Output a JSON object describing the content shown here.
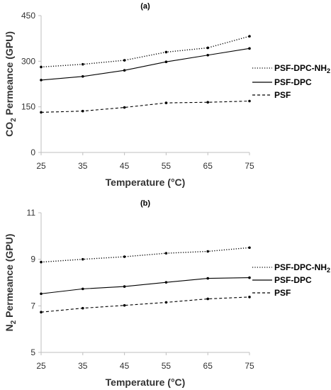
{
  "chart_data": [
    {
      "type": "line",
      "title": "(a)",
      "xlabel": "Temperature (°C)",
      "ylabel_prefix": "CO",
      "ylabel_sub": "2",
      "ylabel_suffix": " Permeance (GPU)",
      "x": [
        25,
        35,
        45,
        55,
        65,
        75
      ],
      "xlim": [
        25,
        75
      ],
      "ylim": [
        0,
        450
      ],
      "yticks": [
        0,
        150,
        300,
        450
      ],
      "xticks": [
        25,
        35,
        45,
        55,
        65,
        75
      ],
      "grid": false,
      "legend_position": "right",
      "series": [
        {
          "name": "PSF-DPC-NH",
          "name_sub": "2",
          "dash": "dotted",
          "values": [
            281,
            290,
            303,
            330,
            344,
            382
          ]
        },
        {
          "name": "PSF-DPC",
          "dash": "solid",
          "values": [
            238,
            250,
            270,
            298,
            320,
            342
          ]
        },
        {
          "name": "PSF",
          "dash": "dashed",
          "values": [
            132,
            136,
            148,
            163,
            165,
            169
          ]
        }
      ]
    },
    {
      "type": "line",
      "title": "(b)",
      "xlabel": "Temperature (°C)",
      "ylabel_prefix": "N",
      "ylabel_sub": "2",
      "ylabel_suffix": " Permeance (GPU)",
      "x": [
        25,
        35,
        45,
        55,
        65,
        75
      ],
      "xlim": [
        25,
        75
      ],
      "ylim": [
        5,
        11
      ],
      "yticks": [
        5,
        7,
        9,
        11
      ],
      "xticks": [
        25,
        35,
        45,
        55,
        65,
        75
      ],
      "grid": false,
      "legend_position": "right",
      "series": [
        {
          "name": "PSF-DPC-NH",
          "name_sub": "2",
          "dash": "dotted",
          "values": [
            8.88,
            9.0,
            9.11,
            9.26,
            9.34,
            9.5
          ]
        },
        {
          "name": "PSF-DPC",
          "dash": "solid",
          "values": [
            7.52,
            7.73,
            7.83,
            8.01,
            8.18,
            8.21
          ]
        },
        {
          "name": "PSF",
          "dash": "dashed",
          "values": [
            6.73,
            6.9,
            7.02,
            7.15,
            7.3,
            7.38
          ]
        }
      ]
    }
  ]
}
